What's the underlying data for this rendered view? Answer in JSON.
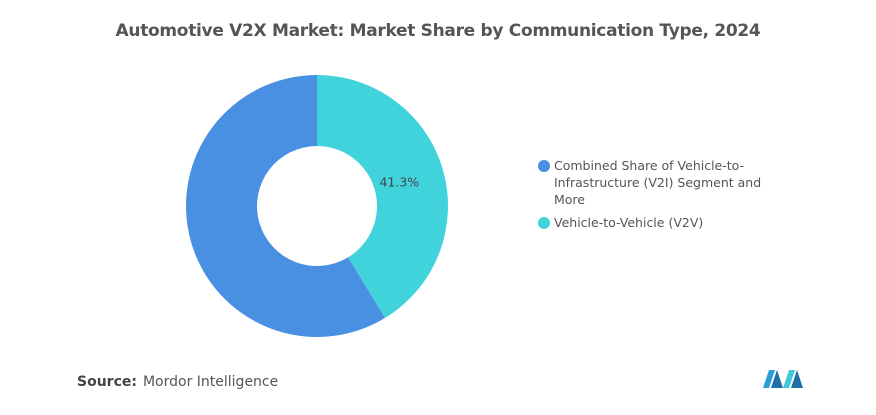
{
  "chart_data": {
    "type": "donut",
    "title": "Automotive V2X Market: Market Share by Communication Type, 2024",
    "categories": [
      "Combined Share of Vehicle-to-Infrastructure (V2I) Segment and More",
      "Vehicle-to-Vehicle (V2V)"
    ],
    "values": [
      58.7,
      41.3
    ],
    "value_labels": [
      null,
      "41.3%"
    ],
    "colors": [
      "#4a90e2",
      "#40d3dc"
    ],
    "source_label": "Source:",
    "source": "Mordor Intelligence"
  }
}
